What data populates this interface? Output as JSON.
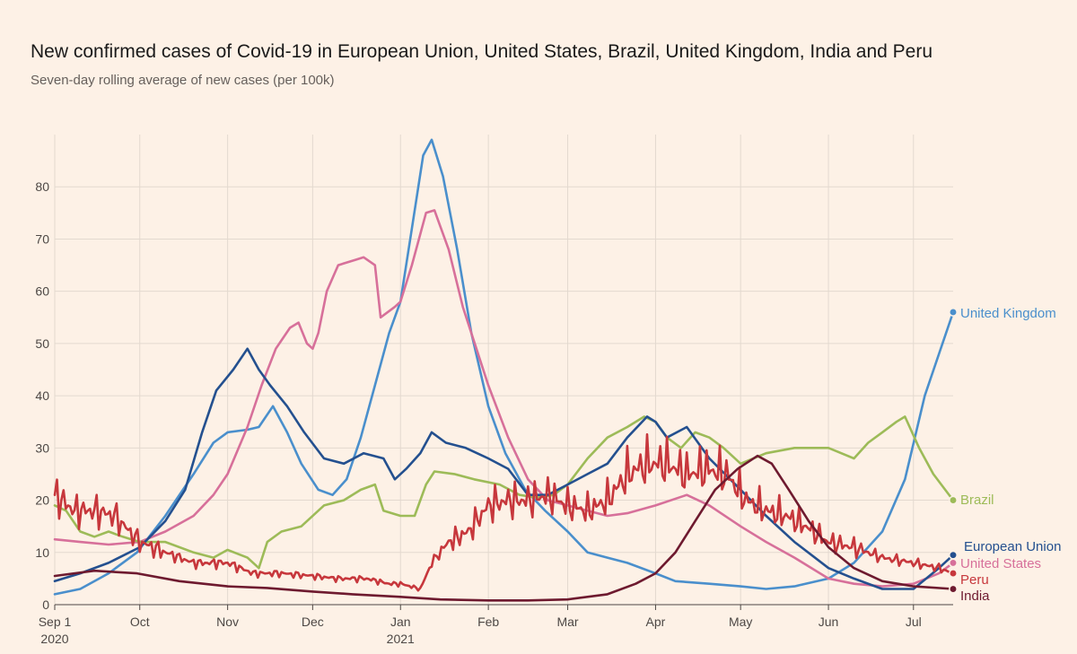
{
  "chart_data": {
    "type": "line",
    "title": "New confirmed cases of Covid-19 in European Union, United States, Brazil, United Kingdom, India and Peru",
    "subtitle": "Seven-day rolling average of new cases (per 100k)",
    "xlabel": "",
    "ylabel": "",
    "ylim": [
      0,
      90
    ],
    "xlim": [
      "2020-09-01",
      "2021-07-15"
    ],
    "y_ticks": [
      "0",
      "10",
      "20",
      "30",
      "40",
      "50",
      "60",
      "70",
      "80"
    ],
    "x_ticks": [
      {
        "label": "Sep 1",
        "sub": "2020",
        "date": "2020-09-01"
      },
      {
        "label": "Oct",
        "sub": "",
        "date": "2020-10-01"
      },
      {
        "label": "Nov",
        "sub": "",
        "date": "2020-11-01"
      },
      {
        "label": "Dec",
        "sub": "",
        "date": "2020-12-01"
      },
      {
        "label": "Jan",
        "sub": "2021",
        "date": "2021-01-01"
      },
      {
        "label": "Feb",
        "sub": "",
        "date": "2021-02-01"
      },
      {
        "label": "Mar",
        "sub": "",
        "date": "2021-03-01"
      },
      {
        "label": "Apr",
        "sub": "",
        "date": "2021-04-01"
      },
      {
        "label": "May",
        "sub": "",
        "date": "2021-05-01"
      },
      {
        "label": "Jun",
        "sub": "",
        "date": "2021-06-01"
      },
      {
        "label": "Jul",
        "sub": "",
        "date": "2021-07-01"
      }
    ],
    "grid": "vertical",
    "series": [
      {
        "name": "United Kingdom",
        "color": "#4a8fcc",
        "end_dot": true,
        "points": [
          [
            "2020-09-01",
            2
          ],
          [
            "2020-09-10",
            3
          ],
          [
            "2020-09-20",
            6
          ],
          [
            "2020-09-30",
            10
          ],
          [
            "2020-10-10",
            17
          ],
          [
            "2020-10-20",
            25
          ],
          [
            "2020-10-27",
            31
          ],
          [
            "2020-11-01",
            33
          ],
          [
            "2020-11-08",
            33.5
          ],
          [
            "2020-11-12",
            34
          ],
          [
            "2020-11-17",
            38
          ],
          [
            "2020-11-22",
            33
          ],
          [
            "2020-11-27",
            27
          ],
          [
            "2020-12-03",
            22
          ],
          [
            "2020-12-08",
            21
          ],
          [
            "2020-12-13",
            24
          ],
          [
            "2020-12-18",
            32
          ],
          [
            "2020-12-23",
            42
          ],
          [
            "2020-12-28",
            52
          ],
          [
            "2021-01-01",
            58
          ],
          [
            "2021-01-05",
            72
          ],
          [
            "2021-01-09",
            86
          ],
          [
            "2021-01-12",
            89
          ],
          [
            "2021-01-16",
            82
          ],
          [
            "2021-01-21",
            68
          ],
          [
            "2021-01-26",
            52
          ],
          [
            "2021-02-01",
            38
          ],
          [
            "2021-02-07",
            29
          ],
          [
            "2021-02-14",
            22
          ],
          [
            "2021-02-21",
            18
          ],
          [
            "2021-03-01",
            14
          ],
          [
            "2021-03-08",
            10
          ],
          [
            "2021-03-15",
            9
          ],
          [
            "2021-03-22",
            8
          ],
          [
            "2021-04-01",
            6
          ],
          [
            "2021-04-08",
            4.5
          ],
          [
            "2021-04-20",
            4
          ],
          [
            "2021-05-01",
            3.5
          ],
          [
            "2021-05-10",
            3
          ],
          [
            "2021-05-20",
            3.5
          ],
          [
            "2021-06-01",
            5
          ],
          [
            "2021-06-10",
            8
          ],
          [
            "2021-06-20",
            14
          ],
          [
            "2021-06-28",
            24
          ],
          [
            "2021-07-05",
            40
          ],
          [
            "2021-07-10",
            48
          ],
          [
            "2021-07-15",
            56
          ]
        ]
      },
      {
        "name": "United States",
        "color": "#d7709a",
        "end_dot": true,
        "points": [
          [
            "2020-09-01",
            12.5
          ],
          [
            "2020-09-10",
            12
          ],
          [
            "2020-09-20",
            11.5
          ],
          [
            "2020-10-01",
            12
          ],
          [
            "2020-10-10",
            14
          ],
          [
            "2020-10-20",
            17
          ],
          [
            "2020-10-27",
            21
          ],
          [
            "2020-11-01",
            25
          ],
          [
            "2020-11-08",
            34
          ],
          [
            "2020-11-13",
            42
          ],
          [
            "2020-11-18",
            49
          ],
          [
            "2020-11-23",
            53
          ],
          [
            "2020-11-26",
            54
          ],
          [
            "2020-11-29",
            50
          ],
          [
            "2020-12-01",
            49
          ],
          [
            "2020-12-03",
            52
          ],
          [
            "2020-12-06",
            60
          ],
          [
            "2020-12-10",
            65
          ],
          [
            "2020-12-16",
            66
          ],
          [
            "2020-12-19",
            66.5
          ],
          [
            "2020-12-23",
            65
          ],
          [
            "2020-12-25",
            55
          ],
          [
            "2020-12-30",
            57
          ],
          [
            "2021-01-01",
            58
          ],
          [
            "2021-01-05",
            65
          ],
          [
            "2021-01-10",
            75
          ],
          [
            "2021-01-13",
            75.5
          ],
          [
            "2021-01-18",
            68
          ],
          [
            "2021-01-23",
            57
          ],
          [
            "2021-02-01",
            42
          ],
          [
            "2021-02-08",
            32
          ],
          [
            "2021-02-15",
            24
          ],
          [
            "2021-02-22",
            20
          ],
          [
            "2021-03-01",
            19
          ],
          [
            "2021-03-08",
            18
          ],
          [
            "2021-03-15",
            17
          ],
          [
            "2021-03-22",
            17.5
          ],
          [
            "2021-04-01",
            19
          ],
          [
            "2021-04-12",
            21
          ],
          [
            "2021-04-20",
            19
          ],
          [
            "2021-05-01",
            15
          ],
          [
            "2021-05-10",
            12
          ],
          [
            "2021-05-20",
            9
          ],
          [
            "2021-06-01",
            5
          ],
          [
            "2021-06-10",
            4
          ],
          [
            "2021-06-20",
            3.5
          ],
          [
            "2021-07-01",
            4
          ],
          [
            "2021-07-10",
            6
          ],
          [
            "2021-07-15",
            8
          ]
        ]
      },
      {
        "name": "Brazil",
        "color": "#9dbb58",
        "end_dot": true,
        "points": [
          [
            "2020-09-01",
            19
          ],
          [
            "2020-09-05",
            18
          ],
          [
            "2020-09-10",
            14
          ],
          [
            "2020-09-15",
            13
          ],
          [
            "2020-09-20",
            14
          ],
          [
            "2020-09-25",
            13
          ],
          [
            "2020-10-01",
            12
          ],
          [
            "2020-10-10",
            12
          ],
          [
            "2020-10-20",
            10
          ],
          [
            "2020-10-27",
            9
          ],
          [
            "2020-11-01",
            10.5
          ],
          [
            "2020-11-08",
            9
          ],
          [
            "2020-11-12",
            7
          ],
          [
            "2020-11-15",
            12
          ],
          [
            "2020-11-20",
            14
          ],
          [
            "2020-11-27",
            15
          ],
          [
            "2020-12-05",
            19
          ],
          [
            "2020-12-12",
            20
          ],
          [
            "2020-12-18",
            22
          ],
          [
            "2020-12-23",
            23
          ],
          [
            "2020-12-26",
            18
          ],
          [
            "2021-01-01",
            17
          ],
          [
            "2021-01-06",
            17
          ],
          [
            "2021-01-10",
            23
          ],
          [
            "2021-01-13",
            25.5
          ],
          [
            "2021-01-20",
            25
          ],
          [
            "2021-01-27",
            24
          ],
          [
            "2021-02-05",
            23
          ],
          [
            "2021-02-12",
            21
          ],
          [
            "2021-02-18",
            20.5
          ],
          [
            "2021-02-24",
            21
          ],
          [
            "2021-03-01",
            23
          ],
          [
            "2021-03-08",
            28
          ],
          [
            "2021-03-15",
            32
          ],
          [
            "2021-03-22",
            34
          ],
          [
            "2021-03-28",
            36
          ],
          [
            "2021-04-01",
            35
          ],
          [
            "2021-04-05",
            32
          ],
          [
            "2021-04-10",
            30
          ],
          [
            "2021-04-15",
            33
          ],
          [
            "2021-04-20",
            32
          ],
          [
            "2021-04-25",
            30
          ],
          [
            "2021-05-01",
            27
          ],
          [
            "2021-05-10",
            29
          ],
          [
            "2021-05-20",
            30
          ],
          [
            "2021-06-01",
            30
          ],
          [
            "2021-06-10",
            28
          ],
          [
            "2021-06-15",
            31
          ],
          [
            "2021-06-20",
            33
          ],
          [
            "2021-06-25",
            35
          ],
          [
            "2021-06-28",
            36
          ],
          [
            "2021-07-03",
            30
          ],
          [
            "2021-07-08",
            25
          ],
          [
            "2021-07-15",
            20
          ]
        ]
      },
      {
        "name": "European Union",
        "color": "#24508f",
        "end_dot": true,
        "points": [
          [
            "2020-09-01",
            4.5
          ],
          [
            "2020-09-10",
            6
          ],
          [
            "2020-09-20",
            8
          ],
          [
            "2020-10-01",
            11
          ],
          [
            "2020-10-10",
            16
          ],
          [
            "2020-10-17",
            22
          ],
          [
            "2020-10-23",
            33
          ],
          [
            "2020-10-28",
            41
          ],
          [
            "2020-11-03",
            45
          ],
          [
            "2020-11-08",
            49
          ],
          [
            "2020-11-12",
            45
          ],
          [
            "2020-11-16",
            42
          ],
          [
            "2020-11-22",
            38
          ],
          [
            "2020-11-28",
            33
          ],
          [
            "2020-12-05",
            28
          ],
          [
            "2020-12-12",
            27
          ],
          [
            "2020-12-19",
            29
          ],
          [
            "2020-12-26",
            28
          ],
          [
            "2020-12-30",
            24
          ],
          [
            "2021-01-03",
            26
          ],
          [
            "2021-01-08",
            29
          ],
          [
            "2021-01-12",
            33
          ],
          [
            "2021-01-17",
            31
          ],
          [
            "2021-01-24",
            30
          ],
          [
            "2021-02-01",
            28
          ],
          [
            "2021-02-08",
            26
          ],
          [
            "2021-02-15",
            21
          ],
          [
            "2021-02-22",
            21
          ],
          [
            "2021-03-01",
            23
          ],
          [
            "2021-03-08",
            25
          ],
          [
            "2021-03-15",
            27
          ],
          [
            "2021-03-22",
            32
          ],
          [
            "2021-03-29",
            36
          ],
          [
            "2021-04-01",
            35
          ],
          [
            "2021-04-05",
            32
          ],
          [
            "2021-04-12",
            34
          ],
          [
            "2021-04-20",
            28
          ],
          [
            "2021-05-01",
            22
          ],
          [
            "2021-05-10",
            17
          ],
          [
            "2021-05-20",
            12
          ],
          [
            "2021-06-01",
            7
          ],
          [
            "2021-06-10",
            5
          ],
          [
            "2021-06-20",
            3
          ],
          [
            "2021-07-01",
            3
          ],
          [
            "2021-07-10",
            7
          ],
          [
            "2021-07-15",
            9.5
          ]
        ]
      },
      {
        "name": "Peru",
        "color": "#c7373c",
        "end_dot": true,
        "jagged": true,
        "points": [
          [
            "2020-09-01",
            21
          ],
          [
            "2020-09-08",
            18
          ],
          [
            "2020-09-15",
            18
          ],
          [
            "2020-09-22",
            17
          ],
          [
            "2020-10-01",
            12
          ],
          [
            "2020-10-10",
            10
          ],
          [
            "2020-10-20",
            8
          ],
          [
            "2020-11-01",
            8
          ],
          [
            "2020-11-10",
            6
          ],
          [
            "2020-11-20",
            6
          ],
          [
            "2020-12-01",
            5.5
          ],
          [
            "2020-12-10",
            5
          ],
          [
            "2020-12-20",
            5
          ],
          [
            "2020-12-28",
            4
          ],
          [
            "2021-01-01",
            4
          ],
          [
            "2021-01-08",
            3
          ],
          [
            "2021-01-12",
            8
          ],
          [
            "2021-01-18",
            12
          ],
          [
            "2021-01-25",
            14
          ],
          [
            "2021-02-01",
            19
          ],
          [
            "2021-02-08",
            20
          ],
          [
            "2021-02-15",
            20
          ],
          [
            "2021-02-22",
            21
          ],
          [
            "2021-03-01",
            19
          ],
          [
            "2021-03-08",
            18
          ],
          [
            "2021-03-15",
            20
          ],
          [
            "2021-03-22",
            25
          ],
          [
            "2021-03-29",
            27
          ],
          [
            "2021-04-05",
            27
          ],
          [
            "2021-04-12",
            25
          ],
          [
            "2021-04-19",
            26
          ],
          [
            "2021-04-26",
            25
          ],
          [
            "2021-05-03",
            20
          ],
          [
            "2021-05-10",
            18
          ],
          [
            "2021-05-17",
            17
          ],
          [
            "2021-05-24",
            15
          ],
          [
            "2021-06-01",
            12
          ],
          [
            "2021-06-10",
            11
          ],
          [
            "2021-06-20",
            9
          ],
          [
            "2021-07-01",
            8
          ],
          [
            "2021-07-10",
            7
          ],
          [
            "2021-07-15",
            6
          ]
        ]
      },
      {
        "name": "India",
        "color": "#6e1a2f",
        "end_dot": true,
        "points": [
          [
            "2020-09-01",
            5.5
          ],
          [
            "2020-09-15",
            6.5
          ],
          [
            "2020-09-30",
            6
          ],
          [
            "2020-10-15",
            4.5
          ],
          [
            "2020-11-01",
            3.5
          ],
          [
            "2020-11-15",
            3.2
          ],
          [
            "2020-12-01",
            2.5
          ],
          [
            "2020-12-15",
            2
          ],
          [
            "2021-01-01",
            1.5
          ],
          [
            "2021-01-15",
            1
          ],
          [
            "2021-02-01",
            0.8
          ],
          [
            "2021-02-15",
            0.8
          ],
          [
            "2021-03-01",
            1
          ],
          [
            "2021-03-15",
            2
          ],
          [
            "2021-03-25",
            4
          ],
          [
            "2021-04-01",
            6
          ],
          [
            "2021-04-08",
            10
          ],
          [
            "2021-04-15",
            16
          ],
          [
            "2021-04-22",
            22
          ],
          [
            "2021-04-30",
            26
          ],
          [
            "2021-05-07",
            28.5
          ],
          [
            "2021-05-12",
            27
          ],
          [
            "2021-05-18",
            22
          ],
          [
            "2021-05-25",
            16
          ],
          [
            "2021-06-01",
            11
          ],
          [
            "2021-06-10",
            7
          ],
          [
            "2021-06-20",
            4.5
          ],
          [
            "2021-07-01",
            3.5
          ],
          [
            "2021-07-15",
            3
          ]
        ]
      }
    ]
  }
}
